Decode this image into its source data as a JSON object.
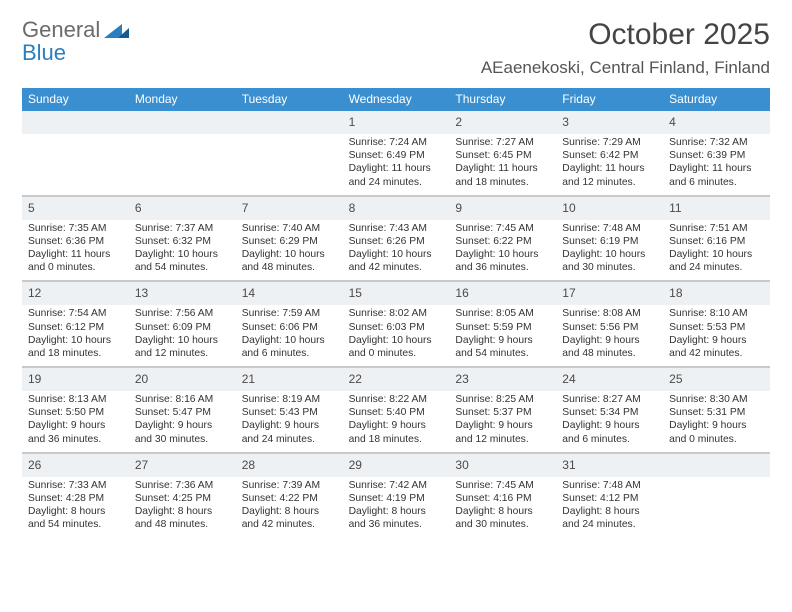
{
  "logo": {
    "word1": "General",
    "word2": "Blue"
  },
  "title": "October 2025",
  "location": "AEaenekoski, Central Finland, Finland",
  "colors": {
    "header_bg": "#3a8fd0",
    "header_fg": "#ffffff",
    "daynum_bg": "#eef1f3",
    "grid_line": "#c9c9c9",
    "text": "#333333",
    "logo_gray": "#6b6b6b",
    "logo_blue": "#2a7fbf"
  },
  "days_of_week": [
    "Sunday",
    "Monday",
    "Tuesday",
    "Wednesday",
    "Thursday",
    "Friday",
    "Saturday"
  ],
  "weeks": [
    [
      {
        "n": "",
        "lines": [
          "",
          "",
          "",
          ""
        ]
      },
      {
        "n": "",
        "lines": [
          "",
          "",
          "",
          ""
        ]
      },
      {
        "n": "",
        "lines": [
          "",
          "",
          "",
          ""
        ]
      },
      {
        "n": "1",
        "lines": [
          "Sunrise: 7:24 AM",
          "Sunset: 6:49 PM",
          "Daylight: 11 hours",
          "and 24 minutes."
        ]
      },
      {
        "n": "2",
        "lines": [
          "Sunrise: 7:27 AM",
          "Sunset: 6:45 PM",
          "Daylight: 11 hours",
          "and 18 minutes."
        ]
      },
      {
        "n": "3",
        "lines": [
          "Sunrise: 7:29 AM",
          "Sunset: 6:42 PM",
          "Daylight: 11 hours",
          "and 12 minutes."
        ]
      },
      {
        "n": "4",
        "lines": [
          "Sunrise: 7:32 AM",
          "Sunset: 6:39 PM",
          "Daylight: 11 hours",
          "and 6 minutes."
        ]
      }
    ],
    [
      {
        "n": "5",
        "lines": [
          "Sunrise: 7:35 AM",
          "Sunset: 6:36 PM",
          "Daylight: 11 hours",
          "and 0 minutes."
        ]
      },
      {
        "n": "6",
        "lines": [
          "Sunrise: 7:37 AM",
          "Sunset: 6:32 PM",
          "Daylight: 10 hours",
          "and 54 minutes."
        ]
      },
      {
        "n": "7",
        "lines": [
          "Sunrise: 7:40 AM",
          "Sunset: 6:29 PM",
          "Daylight: 10 hours",
          "and 48 minutes."
        ]
      },
      {
        "n": "8",
        "lines": [
          "Sunrise: 7:43 AM",
          "Sunset: 6:26 PM",
          "Daylight: 10 hours",
          "and 42 minutes."
        ]
      },
      {
        "n": "9",
        "lines": [
          "Sunrise: 7:45 AM",
          "Sunset: 6:22 PM",
          "Daylight: 10 hours",
          "and 36 minutes."
        ]
      },
      {
        "n": "10",
        "lines": [
          "Sunrise: 7:48 AM",
          "Sunset: 6:19 PM",
          "Daylight: 10 hours",
          "and 30 minutes."
        ]
      },
      {
        "n": "11",
        "lines": [
          "Sunrise: 7:51 AM",
          "Sunset: 6:16 PM",
          "Daylight: 10 hours",
          "and 24 minutes."
        ]
      }
    ],
    [
      {
        "n": "12",
        "lines": [
          "Sunrise: 7:54 AM",
          "Sunset: 6:12 PM",
          "Daylight: 10 hours",
          "and 18 minutes."
        ]
      },
      {
        "n": "13",
        "lines": [
          "Sunrise: 7:56 AM",
          "Sunset: 6:09 PM",
          "Daylight: 10 hours",
          "and 12 minutes."
        ]
      },
      {
        "n": "14",
        "lines": [
          "Sunrise: 7:59 AM",
          "Sunset: 6:06 PM",
          "Daylight: 10 hours",
          "and 6 minutes."
        ]
      },
      {
        "n": "15",
        "lines": [
          "Sunrise: 8:02 AM",
          "Sunset: 6:03 PM",
          "Daylight: 10 hours",
          "and 0 minutes."
        ]
      },
      {
        "n": "16",
        "lines": [
          "Sunrise: 8:05 AM",
          "Sunset: 5:59 PM",
          "Daylight: 9 hours",
          "and 54 minutes."
        ]
      },
      {
        "n": "17",
        "lines": [
          "Sunrise: 8:08 AM",
          "Sunset: 5:56 PM",
          "Daylight: 9 hours",
          "and 48 minutes."
        ]
      },
      {
        "n": "18",
        "lines": [
          "Sunrise: 8:10 AM",
          "Sunset: 5:53 PM",
          "Daylight: 9 hours",
          "and 42 minutes."
        ]
      }
    ],
    [
      {
        "n": "19",
        "lines": [
          "Sunrise: 8:13 AM",
          "Sunset: 5:50 PM",
          "Daylight: 9 hours",
          "and 36 minutes."
        ]
      },
      {
        "n": "20",
        "lines": [
          "Sunrise: 8:16 AM",
          "Sunset: 5:47 PM",
          "Daylight: 9 hours",
          "and 30 minutes."
        ]
      },
      {
        "n": "21",
        "lines": [
          "Sunrise: 8:19 AM",
          "Sunset: 5:43 PM",
          "Daylight: 9 hours",
          "and 24 minutes."
        ]
      },
      {
        "n": "22",
        "lines": [
          "Sunrise: 8:22 AM",
          "Sunset: 5:40 PM",
          "Daylight: 9 hours",
          "and 18 minutes."
        ]
      },
      {
        "n": "23",
        "lines": [
          "Sunrise: 8:25 AM",
          "Sunset: 5:37 PM",
          "Daylight: 9 hours",
          "and 12 minutes."
        ]
      },
      {
        "n": "24",
        "lines": [
          "Sunrise: 8:27 AM",
          "Sunset: 5:34 PM",
          "Daylight: 9 hours",
          "and 6 minutes."
        ]
      },
      {
        "n": "25",
        "lines": [
          "Sunrise: 8:30 AM",
          "Sunset: 5:31 PM",
          "Daylight: 9 hours",
          "and 0 minutes."
        ]
      }
    ],
    [
      {
        "n": "26",
        "lines": [
          "Sunrise: 7:33 AM",
          "Sunset: 4:28 PM",
          "Daylight: 8 hours",
          "and 54 minutes."
        ]
      },
      {
        "n": "27",
        "lines": [
          "Sunrise: 7:36 AM",
          "Sunset: 4:25 PM",
          "Daylight: 8 hours",
          "and 48 minutes."
        ]
      },
      {
        "n": "28",
        "lines": [
          "Sunrise: 7:39 AM",
          "Sunset: 4:22 PM",
          "Daylight: 8 hours",
          "and 42 minutes."
        ]
      },
      {
        "n": "29",
        "lines": [
          "Sunrise: 7:42 AM",
          "Sunset: 4:19 PM",
          "Daylight: 8 hours",
          "and 36 minutes."
        ]
      },
      {
        "n": "30",
        "lines": [
          "Sunrise: 7:45 AM",
          "Sunset: 4:16 PM",
          "Daylight: 8 hours",
          "and 30 minutes."
        ]
      },
      {
        "n": "31",
        "lines": [
          "Sunrise: 7:48 AM",
          "Sunset: 4:12 PM",
          "Daylight: 8 hours",
          "and 24 minutes."
        ]
      },
      {
        "n": "",
        "lines": [
          "",
          "",
          "",
          ""
        ]
      }
    ]
  ]
}
